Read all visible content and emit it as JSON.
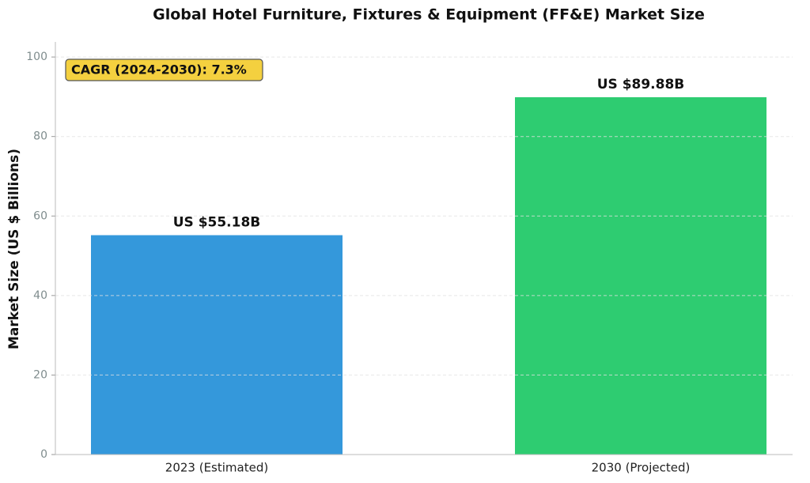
{
  "chart_data": {
    "type": "bar",
    "title": "Global Hotel Furniture, Fixtures & Equipment (FF&E) Market Size",
    "y_label": "Market Size (US $ Billions)",
    "annotation": "CAGR (2024-2030): 7.3%",
    "categories": [
      "2023 (Estimated)",
      "2030 (Projected)"
    ],
    "values": [
      55.18,
      89.88
    ],
    "value_labels": [
      "US $55.18B",
      "US $89.88B"
    ],
    "colors": [
      "#3498db",
      "#2ecc71"
    ],
    "ylim": [
      0,
      103.8
    ],
    "yticks": [
      0,
      20,
      40,
      60,
      80,
      100
    ],
    "grid": true
  }
}
